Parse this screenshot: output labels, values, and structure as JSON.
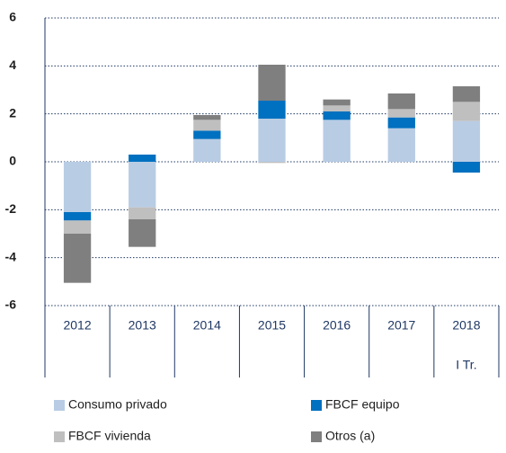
{
  "chart_data": {
    "type": "stacked_bar",
    "categories": [
      "2012",
      "2013",
      "2014",
      "2015",
      "2016",
      "2017",
      "2018"
    ],
    "annotation": "I Tr.",
    "series": [
      {
        "name": "Consumo privado",
        "color": "#b8cce4",
        "values": [
          -2.1,
          -1.9,
          0.95,
          1.8,
          1.75,
          1.4,
          1.7
        ]
      },
      {
        "name": "FBCF equipo",
        "color": "#0070c0",
        "values": [
          -0.35,
          0.3,
          0.35,
          0.75,
          0.35,
          0.45,
          -0.45
        ]
      },
      {
        "name": "FBCF vivienda",
        "color": "#bfbfbf",
        "values": [
          -0.55,
          -0.5,
          0.45,
          -0.05,
          0.25,
          0.35,
          0.8
        ]
      },
      {
        "name": "Otros (a)",
        "color": "#7f7f7f",
        "values": [
          -2.05,
          -1.15,
          0.2,
          1.5,
          0.25,
          0.65,
          0.65
        ]
      }
    ],
    "ylim": [
      -6,
      6
    ],
    "yticks": [
      -6,
      -4,
      -2,
      0,
      2,
      4,
      6
    ],
    "grid": true
  }
}
